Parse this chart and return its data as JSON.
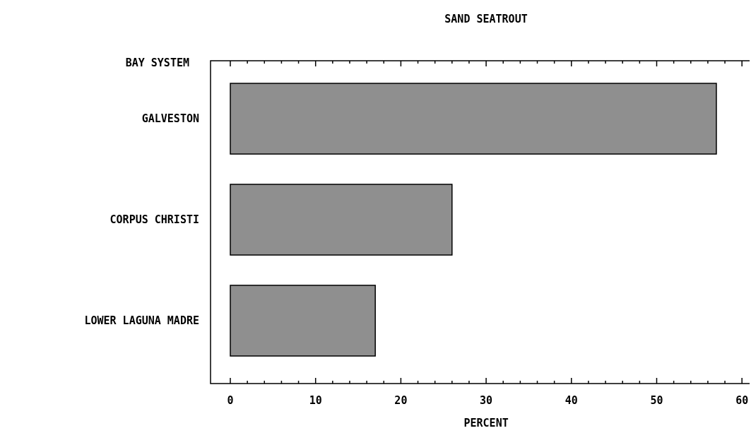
{
  "chart_data": {
    "type": "bar",
    "orientation": "horizontal",
    "title": "SAND SEATROUT",
    "ylabel": "BAY SYSTEM",
    "xlabel": "PERCENT",
    "categories": [
      "GALVESTON",
      "CORPUS CHRISTI",
      "LOWER LAGUNA MADRE"
    ],
    "values": [
      57,
      26,
      17
    ],
    "color": "#8f8f8f",
    "xlim": [
      -2.3,
      60.9
    ],
    "xticks": [
      0,
      {
        "value": 2,
        "label": null
      },
      {
        "value": 4,
        "label": null
      },
      {
        "value": 6,
        "label": null
      },
      {
        "value": 8,
        "label": null
      },
      10,
      {
        "value": 12,
        "label": null
      },
      {
        "value": 14,
        "label": null
      },
      {
        "value": 16,
        "label": null
      },
      {
        "value": 18,
        "label": null
      },
      20,
      {
        "value": 22,
        "label": null
      },
      {
        "value": 24,
        "label": null
      },
      {
        "value": 26,
        "label": null
      },
      {
        "value": 28,
        "label": null
      },
      30,
      {
        "value": 32,
        "label": null
      },
      {
        "value": 34,
        "label": null
      },
      {
        "value": 36,
        "label": null
      },
      {
        "value": 38,
        "label": null
      },
      40,
      {
        "value": 42,
        "label": null
      },
      {
        "value": 44,
        "label": null
      },
      {
        "value": 46,
        "label": null
      },
      {
        "value": 48,
        "label": null
      },
      50,
      {
        "value": 52,
        "label": null
      },
      {
        "value": 54,
        "label": null
      },
      {
        "value": 56,
        "label": null
      },
      {
        "value": 58,
        "label": null
      },
      60
    ],
    "grid": false
  }
}
